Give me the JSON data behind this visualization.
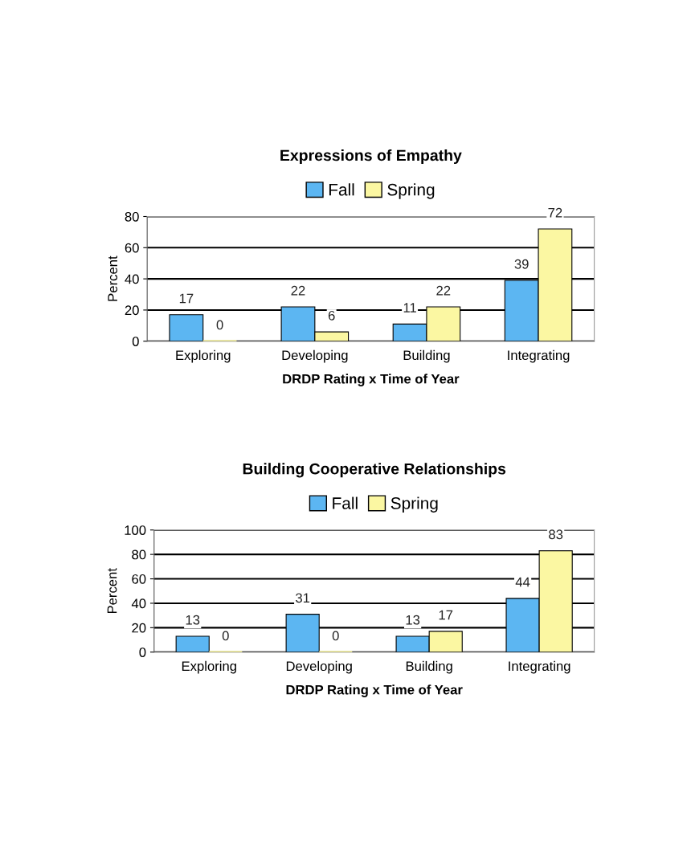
{
  "chart_data": [
    {
      "type": "bar",
      "title": "Expressions of Empathy",
      "xlabel": "DRDP Rating x Time of Year",
      "ylabel": "Percent",
      "categories": [
        "Exploring",
        "Developing",
        "Building",
        "Integrating"
      ],
      "series": [
        {
          "name": "Fall",
          "color": "#5cb6f2",
          "values": [
            17,
            22,
            11,
            39
          ]
        },
        {
          "name": "Spring",
          "color": "#fbf7a2",
          "values": [
            0,
            6,
            22,
            72
          ]
        }
      ],
      "ylim": [
        0,
        80
      ],
      "yticks": [
        0,
        20,
        40,
        60,
        80
      ],
      "grid": "y",
      "legend": "top",
      "data_labels": true
    },
    {
      "type": "bar",
      "title": "Building Cooperative Relationships",
      "xlabel": "DRDP Rating x Time of Year",
      "ylabel": "Percent",
      "categories": [
        "Exploring",
        "Developing",
        "Building",
        "Integrating"
      ],
      "series": [
        {
          "name": "Fall",
          "color": "#5cb6f2",
          "values": [
            13,
            31,
            13,
            44
          ]
        },
        {
          "name": "Spring",
          "color": "#fbf7a2",
          "values": [
            0,
            0,
            17,
            83
          ]
        }
      ],
      "ylim": [
        0,
        100
      ],
      "yticks": [
        0,
        20,
        40,
        60,
        80,
        100
      ],
      "grid": "y",
      "legend": "top",
      "data_labels": true
    }
  ]
}
